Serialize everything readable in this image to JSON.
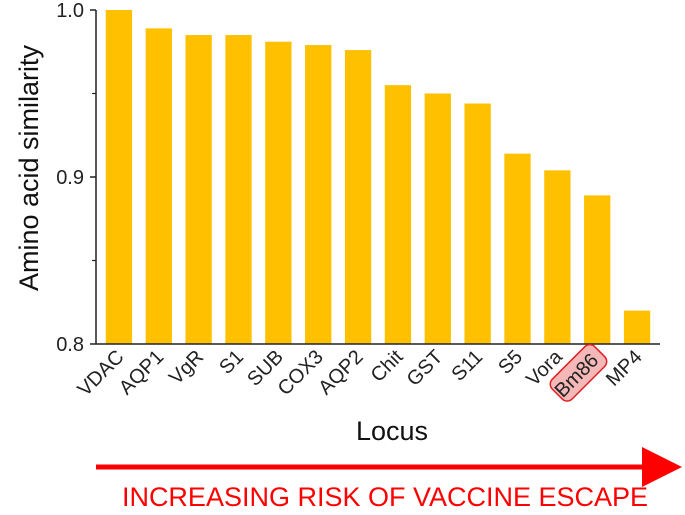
{
  "chart_data": {
    "type": "bar",
    "categories": [
      "VDAC",
      "AQP1",
      "VgR",
      "S1",
      "SUB",
      "COX3",
      "AQP2",
      "Chit",
      "GST",
      "S11",
      "S5",
      "Vora",
      "Bm86",
      "MP4"
    ],
    "values": [
      1.0,
      0.989,
      0.985,
      0.985,
      0.981,
      0.979,
      0.976,
      0.955,
      0.95,
      0.944,
      0.914,
      0.904,
      0.889,
      0.82
    ],
    "xlabel": "Locus",
    "ylabel": "Amino acid similarity",
    "ylim": [
      0.8,
      1.0
    ],
    "yticks": [
      "0.8",
      "0.9",
      "1.0"
    ],
    "ytick_values": [
      0.8,
      0.9,
      1.0
    ],
    "highlighted_category": "Bm86",
    "grid": false,
    "bar_color": "#FFC000",
    "highlight_fill": "#F4B8B8",
    "highlight_border": "#E02020"
  },
  "banner": {
    "text": "INCREASING RISK OF VACCINE ESCAPE",
    "color": "#FF0000"
  }
}
